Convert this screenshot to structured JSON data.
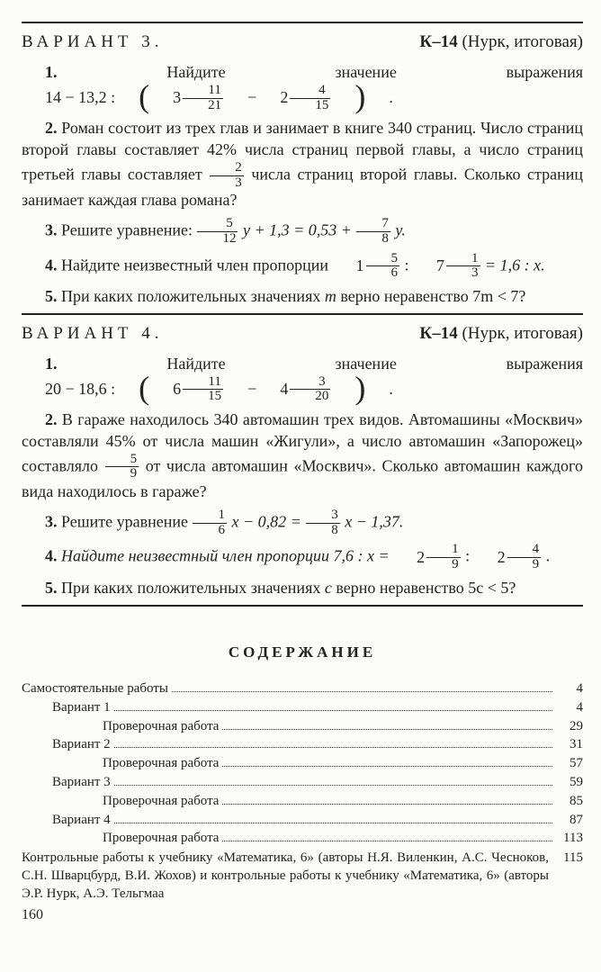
{
  "page_number": "160",
  "variant3": {
    "title": "ВАРИАНТ 3.",
    "k_label_bold": "К–14",
    "k_label_rest": " (Нурк, итоговая)",
    "p1_prefix": "1. ",
    "p1_text": "Найдите значение выражения  ",
    "p1_expr_a": "14 − 13,2 : ",
    "p1_mf1_whole": "3",
    "p1_mf1_num": "11",
    "p1_mf1_den": "21",
    "p1_mid": " − ",
    "p1_mf2_whole": "2",
    "p1_mf2_num": "4",
    "p1_mf2_den": "15",
    "p1_end": ".",
    "p2_prefix": "2. ",
    "p2_a": "Роман состоит из трех глав и занимает в книге 340 страниц. Число страниц второй главы составляет 42% числа страниц первой главы, а число страниц третьей главы составляет ",
    "p2_frac_num": "2",
    "p2_frac_den": "3",
    "p2_b": " числа страниц второй главы. Сколько страниц занимает каждая глава романа?",
    "p3_prefix": "3. ",
    "p3_a": "Решите уравнение:  ",
    "p3_f1_num": "5",
    "p3_f1_den": "12",
    "p3_mid1": " y + 1,3 = 0,53 + ",
    "p3_f2_num": "7",
    "p3_f2_den": "8",
    "p3_end": " y.",
    "p4_prefix": "4. ",
    "p4_a": "Найдите неизвестный член пропорции  ",
    "p4_mf1_whole": "1",
    "p4_mf1_num": "5",
    "p4_mf1_den": "6",
    "p4_mid1": " : ",
    "p4_mf2_whole": "7",
    "p4_mf2_num": "1",
    "p4_mf2_den": "3",
    "p4_end": " = 1,6 : x.",
    "p5_prefix": "5. ",
    "p5_a": "При каких положительных значениях ",
    "p5_var": "m",
    "p5_b": " верно неравенство 7m < 7?"
  },
  "variant4": {
    "title": "ВАРИАНТ 4.",
    "k_label_bold": "К–14",
    "k_label_rest": " (Нурк, итоговая)",
    "p1_prefix": "1. ",
    "p1_text": "Найдите значение выражения  ",
    "p1_expr_a": "20 − 18,6 : ",
    "p1_mf1_whole": "6",
    "p1_mf1_num": "11",
    "p1_mf1_den": "15",
    "p1_mid": " − ",
    "p1_mf2_whole": "4",
    "p1_mf2_num": "3",
    "p1_mf2_den": "20",
    "p1_end": ".",
    "p2_prefix": "2. ",
    "p2_a": "В гараже находилось 340 автомашин трех видов. Автомашины «Москвич» составляли 45% от числа машин «Жигули», а число автомашин «Запорожец» составляло ",
    "p2_frac_num": "5",
    "p2_frac_den": "9",
    "p2_b": " от числа автомашин «Москвич». Сколько автомашин каждого вида находилось в гараже?",
    "p3_prefix": "3. ",
    "p3_a": "Решите уравнение  ",
    "p3_f1_num": "1",
    "p3_f1_den": "6",
    "p3_mid1": " x − 0,82 = ",
    "p3_f2_num": "3",
    "p3_f2_den": "8",
    "p3_end": " x − 1,37.",
    "p4_prefix": "4. ",
    "p4_a": "Найдите неизвестный член пропорции  7,6 : x = ",
    "p4_mf1_whole": "2",
    "p4_mf1_num": "1",
    "p4_mf1_den": "9",
    "p4_mid1": " : ",
    "p4_mf2_whole": "2",
    "p4_mf2_num": "4",
    "p4_mf2_den": "9",
    "p4_end": ".",
    "p5_prefix": "5. ",
    "p5_a": "При каких положительных значениях ",
    "p5_var": "c",
    "p5_b": " верно неравенство 5c < 5?"
  },
  "toc": {
    "title": "СОДЕРЖАНИЕ",
    "rows": [
      {
        "indent": 0,
        "label": "Самостоятельные работы",
        "page": "4"
      },
      {
        "indent": 1,
        "label": "Вариант 1",
        "page": "4"
      },
      {
        "indent": 2,
        "label": "Проверочная работа",
        "page": "29"
      },
      {
        "indent": 1,
        "label": "Вариант 2",
        "page": "31"
      },
      {
        "indent": 2,
        "label": "Проверочная работа",
        "page": "57"
      },
      {
        "indent": 1,
        "label": "Вариант 3",
        "page": "59"
      },
      {
        "indent": 2,
        "label": "Проверочная работа",
        "page": "85"
      },
      {
        "indent": 1,
        "label": "Вариант 4",
        "page": "87"
      },
      {
        "indent": 2,
        "label": "Проверочная работа",
        "page": "113"
      }
    ],
    "tail_a": "Контрольные работы к учебнику «Математика, 6» (авторы Н.Я. Виленкин, А.С. Чесноков, С.Н. Шварцбурд, В.И. Жохов) и контрольные работы к учебнику «Математика, 6» (авторы Э.Р. Нурк, А.Э. Тельгмаа",
    "tail_page": "115"
  }
}
